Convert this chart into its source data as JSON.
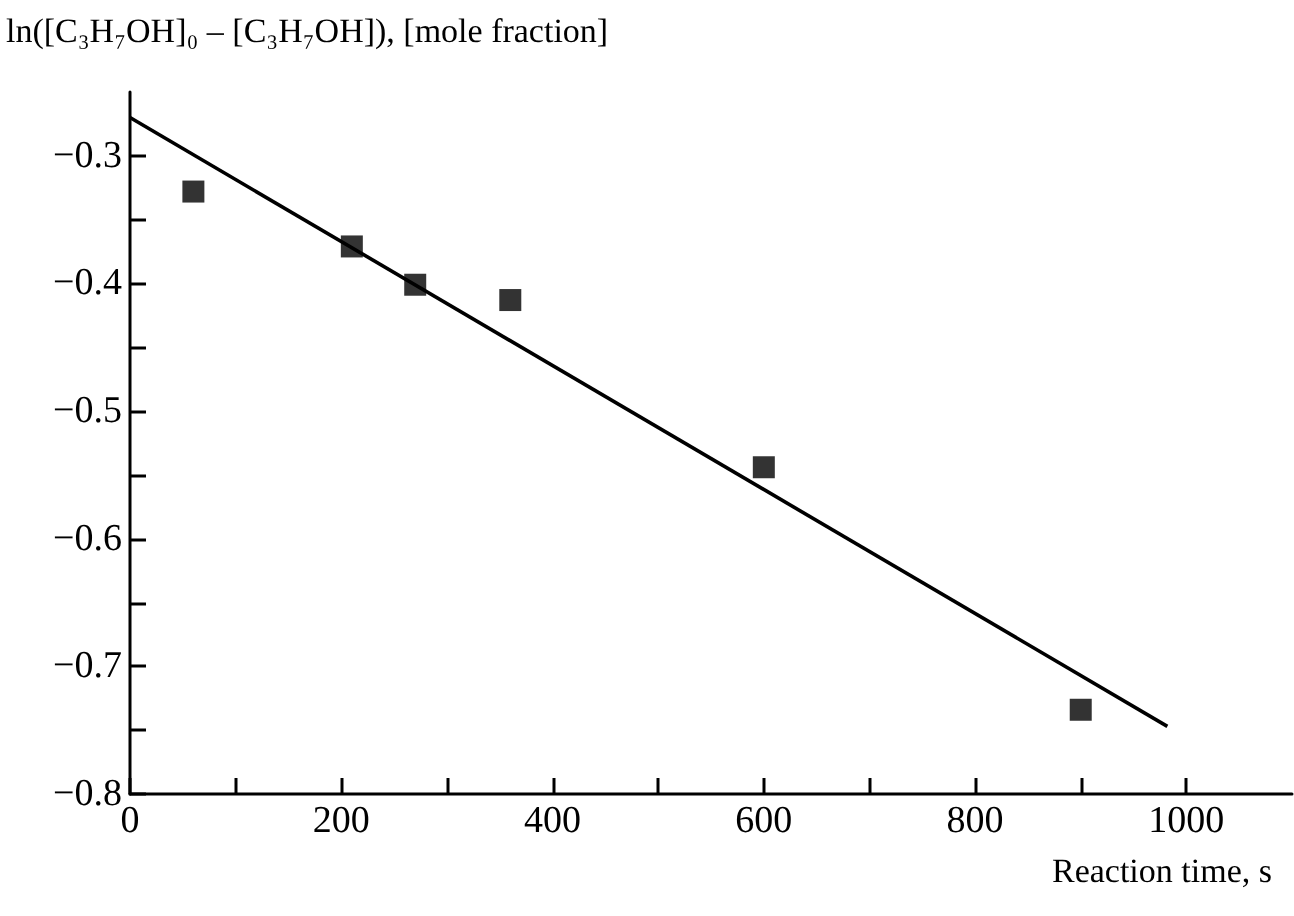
{
  "chart_data": {
    "type": "scatter",
    "ylabel": "ln([C₃H₇OH]₀ – [C₃H₇OH]), [mole fraction]",
    "xlabel": "Reaction time, s",
    "xlim": [
      0,
      1100
    ],
    "ylim": [
      -0.8,
      -0.25
    ],
    "xticks": [
      0,
      {
        "value": 100,
        "label": null
      },
      200,
      {
        "value": 300,
        "label": null
      },
      400,
      {
        "value": 500,
        "label": null
      },
      600,
      {
        "value": 700,
        "label": null
      },
      800,
      {
        "value": 900,
        "label": null
      },
      1000
    ],
    "yticks": [
      -0.8,
      {
        "value": -0.75,
        "label": null
      },
      -0.7,
      {
        "value": -0.65,
        "label": null
      },
      -0.6,
      {
        "value": -0.55,
        "label": null
      },
      -0.5,
      {
        "value": -0.45,
        "label": null
      },
      -0.4,
      {
        "value": -0.35,
        "label": null
      },
      -0.3
    ],
    "series": [
      {
        "marker": "square",
        "color": "#000000",
        "x": [
          60,
          210,
          270,
          360,
          600,
          900
        ],
        "values": [
          -0.328,
          -0.371,
          -0.401,
          -0.413,
          -0.544,
          -0.734
        ]
      },
      {
        "type": "line",
        "marker": "none",
        "color": "#000000",
        "x": [
          0,
          982
        ],
        "values": [
          -0.27,
          -0.747
        ]
      }
    ]
  }
}
